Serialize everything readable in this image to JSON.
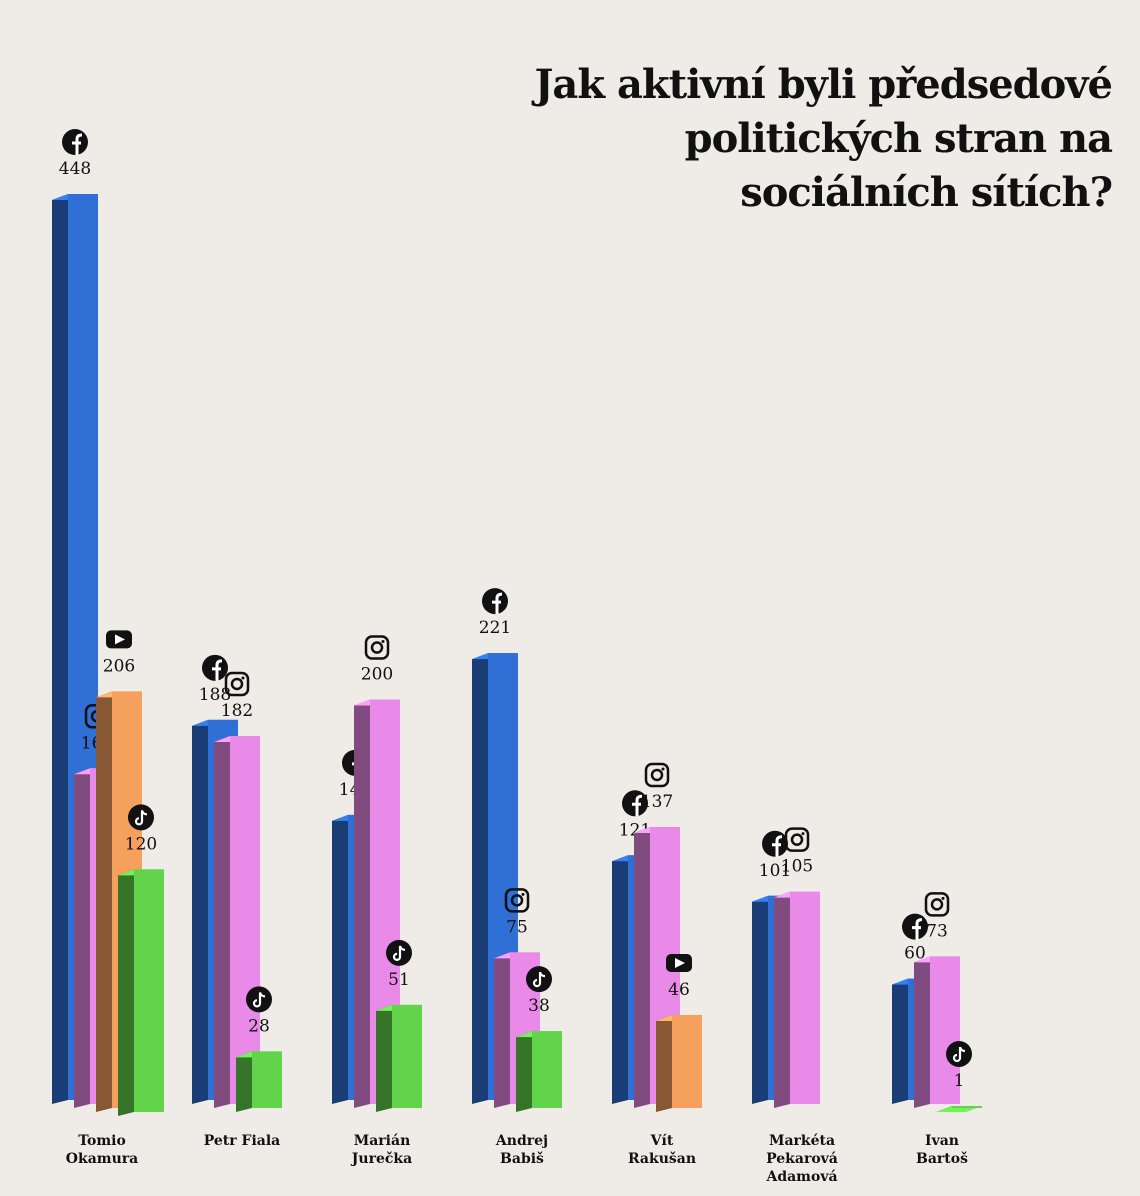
{
  "chart_data": {
    "type": "bar3d",
    "title": "Jak aktivní byli předsedové politických stran na sociálních sítích?",
    "categories": [
      "Tomio Okamura",
      "Petr Fiala",
      "Marián Jurečka",
      "Andrej Babiš",
      "Vít Rakušan",
      "Markéta Pekarová Adamová",
      "Ivan Bartoš"
    ],
    "series": [
      {
        "color": "#2f6fd6",
        "values": [
          448,
          188,
          141,
          221,
          121,
          101,
          60
        ]
      },
      {
        "color": "#e98ae9",
        "values": [
          166,
          182,
          200,
          75,
          137,
          105,
          73
        ]
      },
      {
        "color": "#f5a05c",
        "values": [
          206,
          null,
          null,
          null,
          46,
          null,
          null
        ]
      },
      {
        "color": "#62d44b",
        "values": [
          120,
          28,
          51,
          38,
          null,
          null,
          1
        ]
      }
    ],
    "ylim": [
      0,
      450
    ]
  }
}
